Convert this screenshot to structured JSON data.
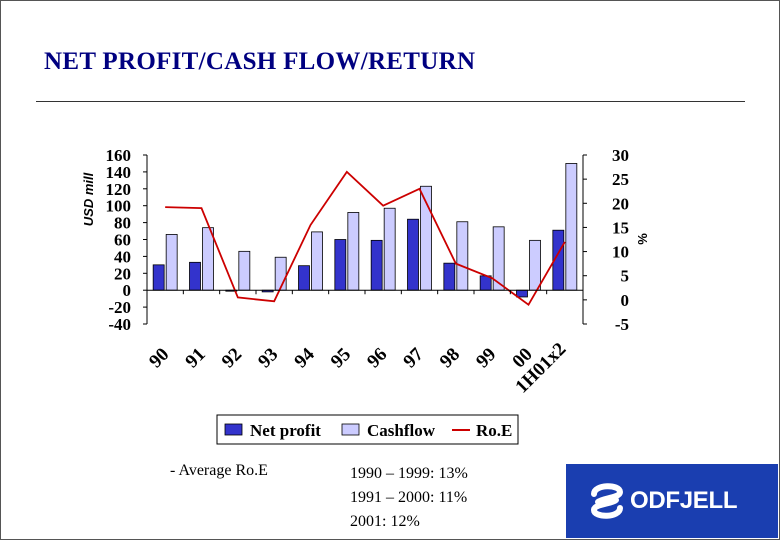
{
  "slide": {
    "title": "NET PROFIT/CASH FLOW/RETURN",
    "notes": {
      "average_label": "- Average Ro.E",
      "periods": [
        "1990 – 1999: 13%",
        "1991 – 2000: 11%",
        "2001: 12%"
      ]
    },
    "logo_text": "ODFJELL"
  },
  "colors": {
    "net_profit": "#3333cc",
    "cashflow": "#ccccff",
    "roe": "#cc0000"
  },
  "chart_data": {
    "type": "bar",
    "title": "NET PROFIT/CASH FLOW/RETURN",
    "categories": [
      "90",
      "91",
      "92",
      "93",
      "94",
      "95",
      "96",
      "97",
      "98",
      "99",
      "00",
      "1H01x2"
    ],
    "y_left": {
      "label": "USD mill",
      "range": [
        -40,
        160
      ],
      "ticks": [
        "160",
        "140",
        "120",
        "100",
        "80",
        "60",
        "40",
        "20",
        "0",
        "-20",
        "-40"
      ]
    },
    "y_right": {
      "label": "%",
      "range": [
        -5,
        30
      ],
      "ticks": [
        "30",
        "25",
        "20",
        "15",
        "10",
        "5",
        "0",
        "-5"
      ]
    },
    "series": [
      {
        "name": "Net profit",
        "type": "bar",
        "axis": "left",
        "values": [
          30,
          33,
          -1,
          -2,
          29,
          60,
          59,
          84,
          32,
          17,
          -8,
          71
        ]
      },
      {
        "name": "Cashflow",
        "type": "bar",
        "axis": "left",
        "values": [
          66,
          74,
          46,
          39,
          69,
          92,
          97,
          123,
          81,
          75,
          59,
          150
        ]
      },
      {
        "name": "Ro.E",
        "type": "line",
        "axis": "right",
        "values": [
          19.2,
          19.0,
          0.5,
          -0.3,
          15.5,
          26.5,
          19.5,
          23.0,
          7.5,
          4.5,
          -1.0,
          12.0
        ]
      }
    ],
    "legend": [
      "Net profit",
      "Cashflow",
      "Ro.E"
    ],
    "legend_position": "bottom"
  }
}
